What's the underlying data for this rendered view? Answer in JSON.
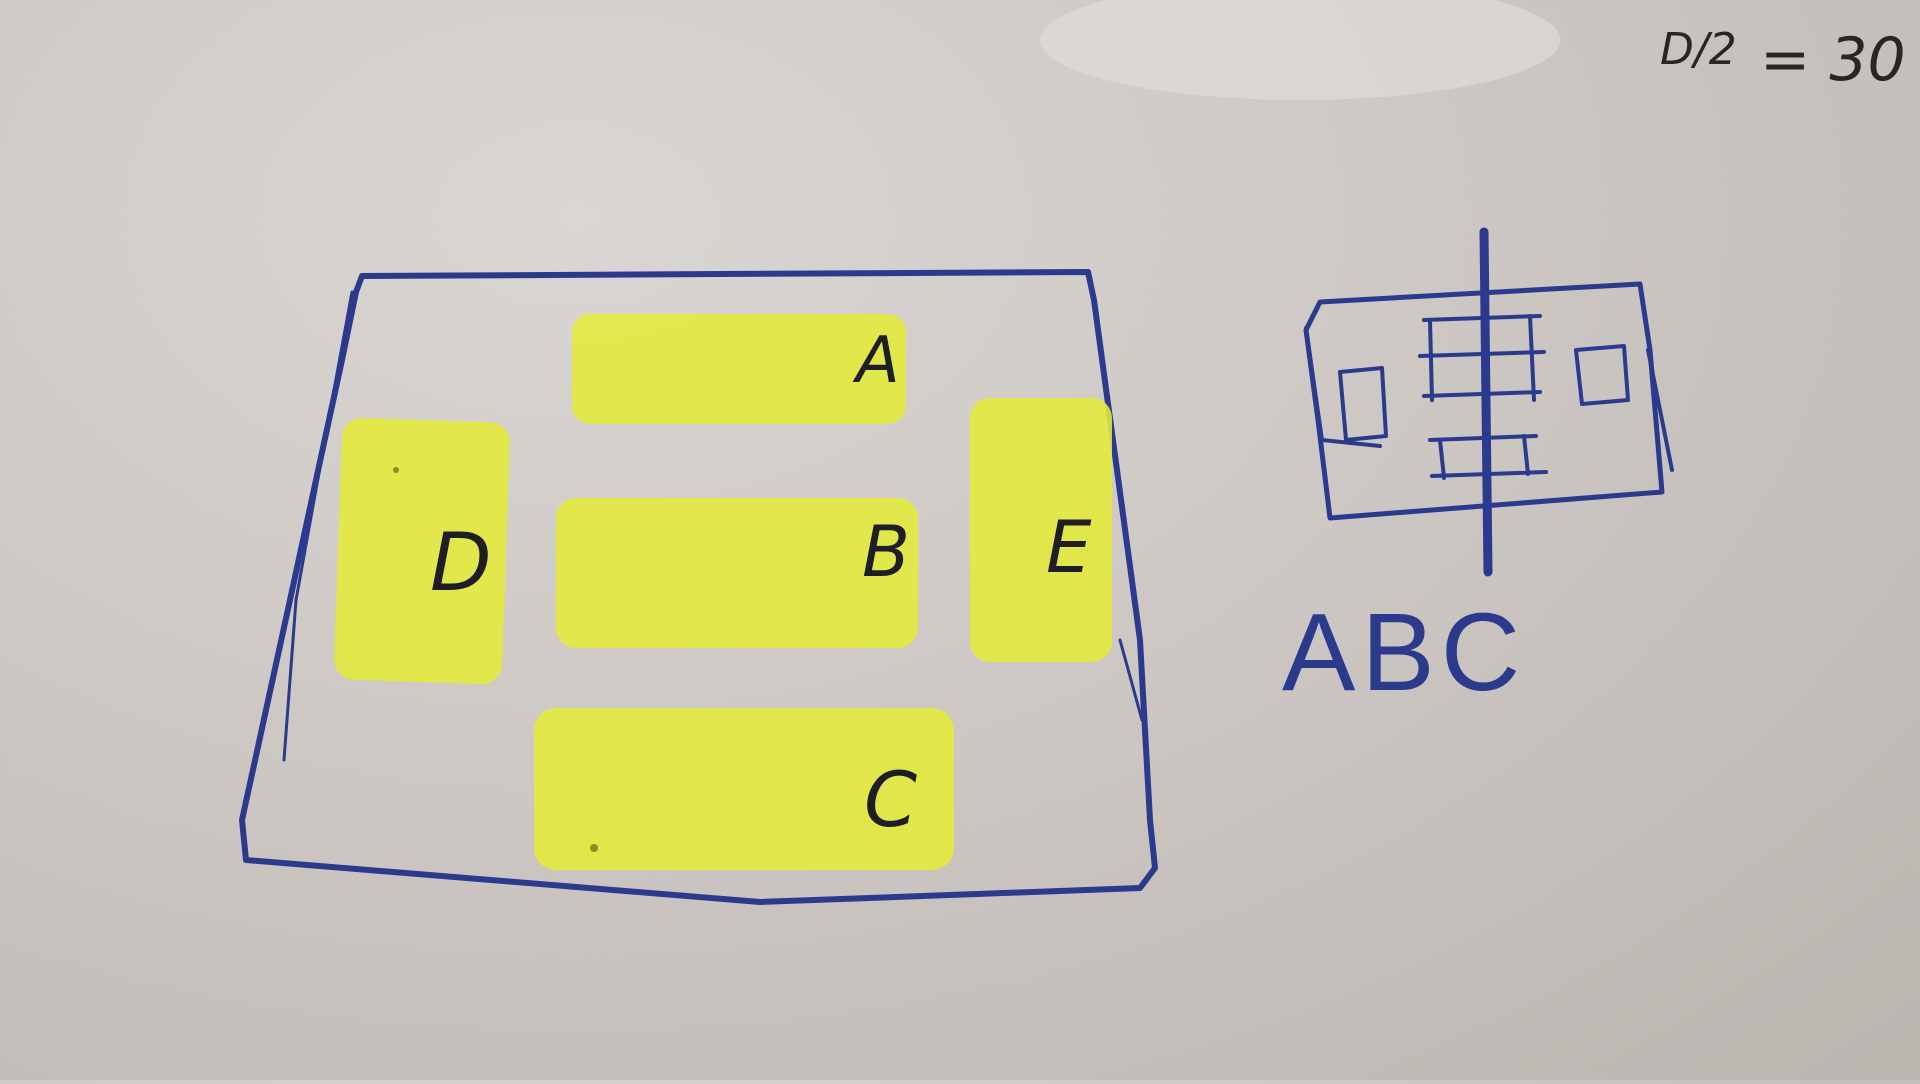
{
  "sketch": {
    "labels": {
      "a": "A",
      "b": "B",
      "c": "C",
      "d": "D",
      "e": "E"
    },
    "caption": "ABC",
    "corner_note": {
      "fraction": "D/2",
      "equation": "= 30"
    }
  },
  "colors": {
    "ink_blue": "#2b3a8c",
    "highlighter_yellow": "#e4ea3a",
    "pen_black": "#1e1e24",
    "paper": "#cdc8c4"
  }
}
